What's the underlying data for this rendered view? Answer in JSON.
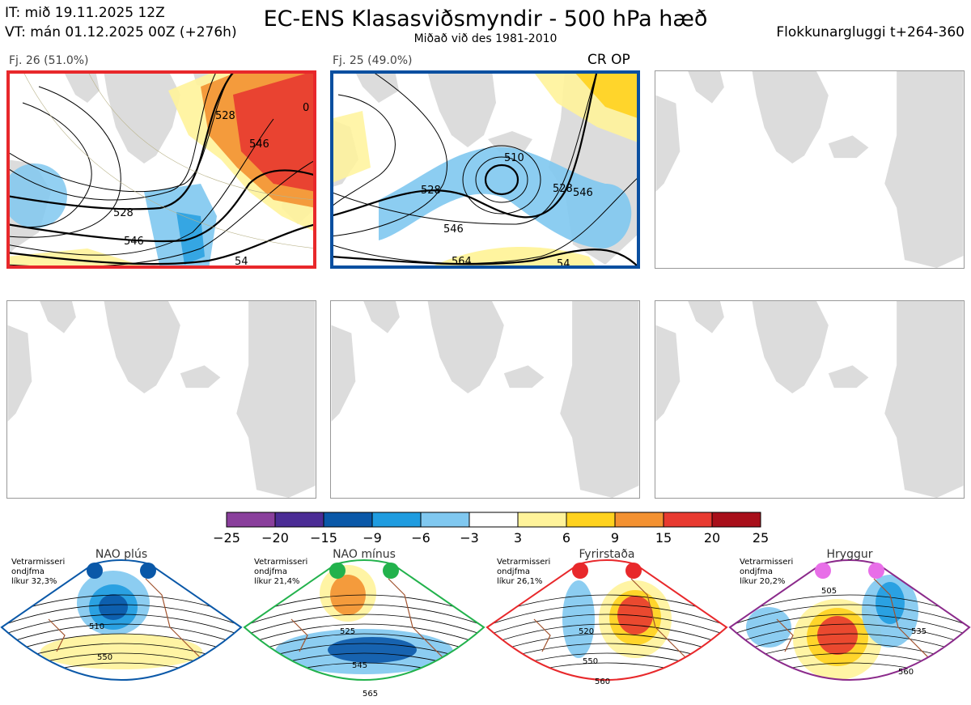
{
  "header": {
    "it": "IT: mið 19.11.2025 12Z",
    "vt": "VT: mán 01.12.2025 00Z  (+276h)",
    "title": "EC-ENS Klasasviðsmyndir - 500 hPa hæð",
    "subtitle": "Miðað við des 1981-2010",
    "window": "Flokkunargluggi t+264-360"
  },
  "clusters": [
    {
      "label": "Fj. 26 (51.0%)",
      "border": "#e8282b",
      "contour_labels": [
        "528",
        "546",
        "528",
        "546",
        "54",
        "0"
      ]
    },
    {
      "label": "Fj. 25 (49.0%)",
      "border": "#0a4fa0",
      "marker": "CR OP",
      "contour_labels": [
        "510",
        "528",
        "546",
        "564",
        "528",
        "546",
        "54"
      ]
    }
  ],
  "colorbar": {
    "colors": [
      "#8a3f9c",
      "#4b2c95",
      "#0a58a8",
      "#1f9ce0",
      "#80c8f0",
      "#ffffff",
      "#fff39a",
      "#ffd21e",
      "#f39131",
      "#e83a30",
      "#a80f1a"
    ],
    "labels": [
      "−25",
      "−20",
      "−15",
      "−9",
      "−6",
      "−3",
      "3",
      "6",
      "9",
      "15",
      "20",
      "25"
    ]
  },
  "regimes": [
    {
      "name": "NAO plús",
      "color": "#0a58a8",
      "border": "#0a58a8",
      "note": [
        "Vetrarmisseri",
        "ondjfma",
        "líkur 32,3%"
      ],
      "contour_labels": [
        "510",
        "550"
      ]
    },
    {
      "name": "NAO mínus",
      "color": "#22b24c",
      "border": "#22b24c",
      "note": [
        "Vetrarmisseri",
        "ondjfma",
        "líkur 21,4%"
      ],
      "contour_labels": [
        "525",
        "545",
        "565"
      ]
    },
    {
      "name": "Fyrirstaða",
      "color": "#e8282b",
      "border": "#e8282b",
      "note": [
        "Vetrarmisseri",
        "ondjfma",
        "líkur 26,1%"
      ],
      "contour_labels": [
        "520",
        "550",
        "560"
      ]
    },
    {
      "name": "Hryggur",
      "color": "#e86ee8",
      "border": "#8b2a8b",
      "note": [
        "Vetrarmisseri",
        "ondjfma",
        "líkur 20,2%"
      ],
      "contour_labels": [
        "505",
        "535",
        "560"
      ]
    }
  ]
}
